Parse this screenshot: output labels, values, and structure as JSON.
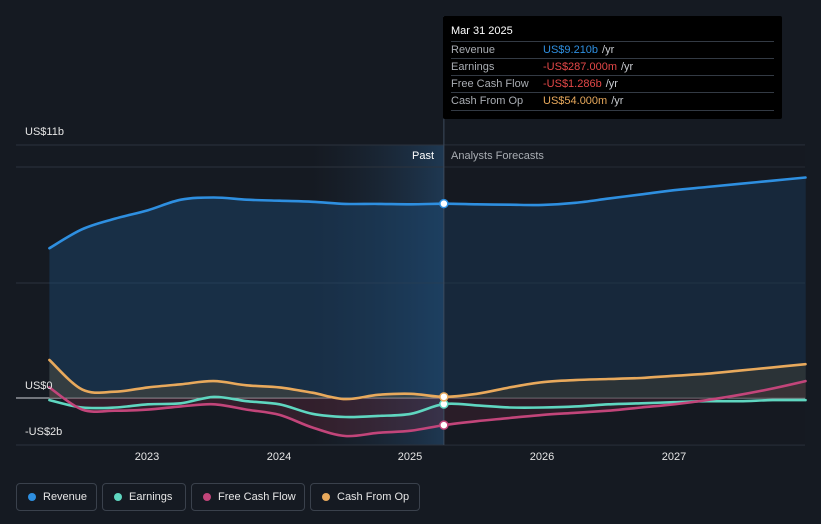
{
  "chart_data": {
    "type": "area",
    "x_axis_ticks": [
      "2023",
      "2024",
      "2025",
      "2026",
      "2027"
    ],
    "y_axis_labels": {
      "top": "US$11b",
      "zero": "US$0",
      "bottom": "-US$2b"
    },
    "ylim": [
      -2,
      11
    ],
    "region_labels": {
      "past": "Past",
      "forecast": "Analysts Forecasts"
    },
    "forecast_start": 2025.25,
    "series": [
      {
        "name": "Revenue",
        "color": "#2e8fe0",
        "points": [
          [
            2022.25,
            7.1
          ],
          [
            2022.5,
            8.0
          ],
          [
            2022.75,
            8.5
          ],
          [
            2023.0,
            8.9
          ],
          [
            2023.25,
            9.4
          ],
          [
            2023.5,
            9.5
          ],
          [
            2023.75,
            9.4
          ],
          [
            2024.0,
            9.35
          ],
          [
            2024.25,
            9.3
          ],
          [
            2024.5,
            9.2
          ],
          [
            2024.75,
            9.2
          ],
          [
            2025.0,
            9.18
          ],
          [
            2025.25,
            9.21
          ],
          [
            2025.5,
            9.18
          ],
          [
            2025.75,
            9.16
          ],
          [
            2026.0,
            9.15
          ],
          [
            2026.25,
            9.25
          ],
          [
            2026.5,
            9.45
          ],
          [
            2026.75,
            9.65
          ],
          [
            2027.0,
            9.85
          ],
          [
            2027.25,
            10.0
          ],
          [
            2027.5,
            10.15
          ],
          [
            2027.75,
            10.3
          ],
          [
            2028.0,
            10.45
          ]
        ]
      },
      {
        "name": "Earnings",
        "color": "#5fd6c0",
        "points": [
          [
            2022.25,
            -0.1
          ],
          [
            2022.5,
            -0.45
          ],
          [
            2022.75,
            -0.45
          ],
          [
            2023.0,
            -0.3
          ],
          [
            2023.25,
            -0.25
          ],
          [
            2023.5,
            0.05
          ],
          [
            2023.75,
            -0.15
          ],
          [
            2024.0,
            -0.3
          ],
          [
            2024.25,
            -0.75
          ],
          [
            2024.5,
            -0.9
          ],
          [
            2024.75,
            -0.85
          ],
          [
            2025.0,
            -0.75
          ],
          [
            2025.25,
            -0.287
          ],
          [
            2025.5,
            -0.35
          ],
          [
            2025.75,
            -0.45
          ],
          [
            2026.0,
            -0.45
          ],
          [
            2026.25,
            -0.4
          ],
          [
            2026.5,
            -0.3
          ],
          [
            2026.75,
            -0.25
          ],
          [
            2027.0,
            -0.2
          ],
          [
            2027.25,
            -0.15
          ],
          [
            2027.5,
            -0.15
          ],
          [
            2027.75,
            -0.1
          ],
          [
            2028.0,
            -0.1
          ]
        ]
      },
      {
        "name": "Free Cash Flow",
        "color": "#c2457a",
        "points": [
          [
            2022.25,
            0.5
          ],
          [
            2022.5,
            -0.55
          ],
          [
            2022.75,
            -0.6
          ],
          [
            2023.0,
            -0.55
          ],
          [
            2023.25,
            -0.4
          ],
          [
            2023.5,
            -0.3
          ],
          [
            2023.75,
            -0.55
          ],
          [
            2024.0,
            -0.8
          ],
          [
            2024.25,
            -1.4
          ],
          [
            2024.5,
            -1.8
          ],
          [
            2024.75,
            -1.65
          ],
          [
            2025.0,
            -1.55
          ],
          [
            2025.25,
            -1.286
          ],
          [
            2025.5,
            -1.1
          ],
          [
            2025.75,
            -0.95
          ],
          [
            2026.0,
            -0.8
          ],
          [
            2026.25,
            -0.7
          ],
          [
            2026.5,
            -0.6
          ],
          [
            2026.75,
            -0.45
          ],
          [
            2027.0,
            -0.3
          ],
          [
            2027.25,
            -0.1
          ],
          [
            2027.5,
            0.15
          ],
          [
            2027.75,
            0.45
          ],
          [
            2028.0,
            0.8
          ]
        ]
      },
      {
        "name": "Cash From Op",
        "color": "#e8a95c",
        "points": [
          [
            2022.25,
            1.8
          ],
          [
            2022.5,
            0.4
          ],
          [
            2022.75,
            0.3
          ],
          [
            2023.0,
            0.5
          ],
          [
            2023.25,
            0.65
          ],
          [
            2023.5,
            0.8
          ],
          [
            2023.75,
            0.6
          ],
          [
            2024.0,
            0.5
          ],
          [
            2024.25,
            0.25
          ],
          [
            2024.5,
            -0.05
          ],
          [
            2024.75,
            0.15
          ],
          [
            2025.0,
            0.2
          ],
          [
            2025.25,
            0.054
          ],
          [
            2025.5,
            0.2
          ],
          [
            2025.75,
            0.5
          ],
          [
            2026.0,
            0.75
          ],
          [
            2026.25,
            0.85
          ],
          [
            2026.5,
            0.9
          ],
          [
            2026.75,
            0.95
          ],
          [
            2027.0,
            1.05
          ],
          [
            2027.25,
            1.15
          ],
          [
            2027.5,
            1.3
          ],
          [
            2027.75,
            1.45
          ],
          [
            2028.0,
            1.6
          ]
        ]
      }
    ]
  },
  "tooltip": {
    "date": "Mar 31 2025",
    "rows": [
      {
        "name": "Revenue",
        "value": "US$9.210b",
        "unit": "/yr",
        "color": "#2e8fe0"
      },
      {
        "name": "Earnings",
        "value": "-US$287.000m",
        "unit": "/yr",
        "color": "#e54848"
      },
      {
        "name": "Free Cash Flow",
        "value": "-US$1.286b",
        "unit": "/yr",
        "color": "#e54848"
      },
      {
        "name": "Cash From Op",
        "value": "US$54.000m",
        "unit": "/yr",
        "color": "#e8a95c"
      }
    ]
  },
  "legend": [
    "Revenue",
    "Earnings",
    "Free Cash Flow",
    "Cash From Op"
  ]
}
